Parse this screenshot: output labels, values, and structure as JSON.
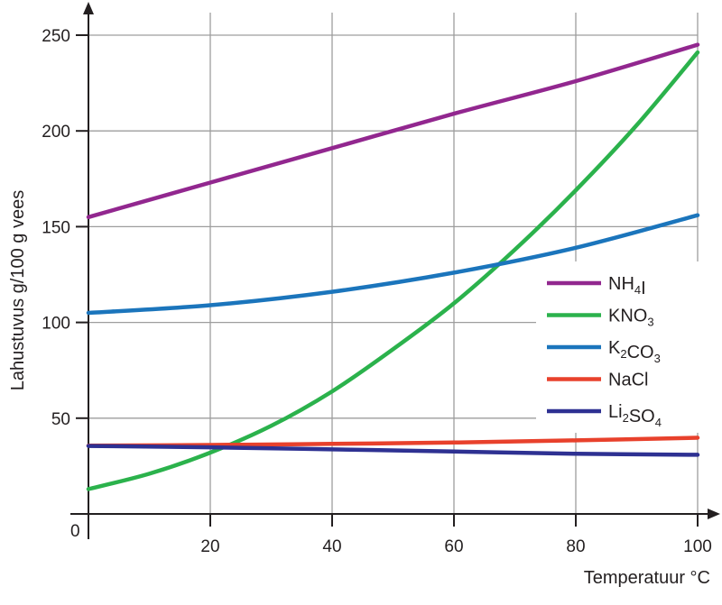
{
  "chart_data": {
    "type": "line",
    "title": "",
    "xlabel": "Temperatuur °C",
    "ylabel": "Lahustuvus g/100 g vees",
    "xlim": [
      0,
      100
    ],
    "ylim": [
      0,
      250
    ],
    "x_ticks": [
      "20",
      "40",
      "60",
      "80",
      "100"
    ],
    "y_ticks": [
      "50",
      "100",
      "150",
      "200",
      "250"
    ],
    "origin_label": "0",
    "grid": true,
    "legend_position": "right",
    "series": [
      {
        "name": "NH4I",
        "label_parts": [
          [
            "NH",
            ""
          ],
          [
            "4",
            "sub"
          ],
          [
            "I",
            ""
          ]
        ],
        "color": "#92278f",
        "points": [
          [
            0,
            155
          ],
          [
            20,
            173
          ],
          [
            40,
            191
          ],
          [
            60,
            209
          ],
          [
            80,
            226
          ],
          [
            100,
            245
          ]
        ]
      },
      {
        "name": "KNO3",
        "label_parts": [
          [
            "KNO",
            ""
          ],
          [
            "3",
            "sub"
          ]
        ],
        "color": "#2bb24c",
        "points": [
          [
            0,
            13
          ],
          [
            10,
            21
          ],
          [
            20,
            32
          ],
          [
            30,
            46
          ],
          [
            40,
            64
          ],
          [
            50,
            86
          ],
          [
            60,
            110
          ],
          [
            70,
            138
          ],
          [
            80,
            169
          ],
          [
            90,
            203
          ],
          [
            100,
            241
          ]
        ]
      },
      {
        "name": "K2CO3",
        "label_parts": [
          [
            "K",
            ""
          ],
          [
            "2",
            "sub"
          ],
          [
            "CO",
            ""
          ],
          [
            "3",
            "sub"
          ]
        ],
        "color": "#1b75bc",
        "points": [
          [
            0,
            105
          ],
          [
            20,
            109
          ],
          [
            40,
            116
          ],
          [
            60,
            126
          ],
          [
            80,
            139
          ],
          [
            100,
            156
          ]
        ]
      },
      {
        "name": "NaCl",
        "label_parts": [
          [
            "NaCl",
            ""
          ]
        ],
        "color": "#e8412c",
        "points": [
          [
            0,
            35.7
          ],
          [
            20,
            36
          ],
          [
            40,
            36.6
          ],
          [
            60,
            37.3
          ],
          [
            80,
            38.4
          ],
          [
            100,
            39.8
          ]
        ]
      },
      {
        "name": "Li2SO4",
        "label_parts": [
          [
            "Li",
            ""
          ],
          [
            "2",
            "sub"
          ],
          [
            "SO",
            ""
          ],
          [
            "4",
            "sub"
          ]
        ],
        "color": "#2e3192",
        "points": [
          [
            0,
            35.5
          ],
          [
            20,
            34.8
          ],
          [
            40,
            33.7
          ],
          [
            60,
            32.6
          ],
          [
            80,
            31.4
          ],
          [
            100,
            30.9
          ]
        ]
      }
    ]
  }
}
